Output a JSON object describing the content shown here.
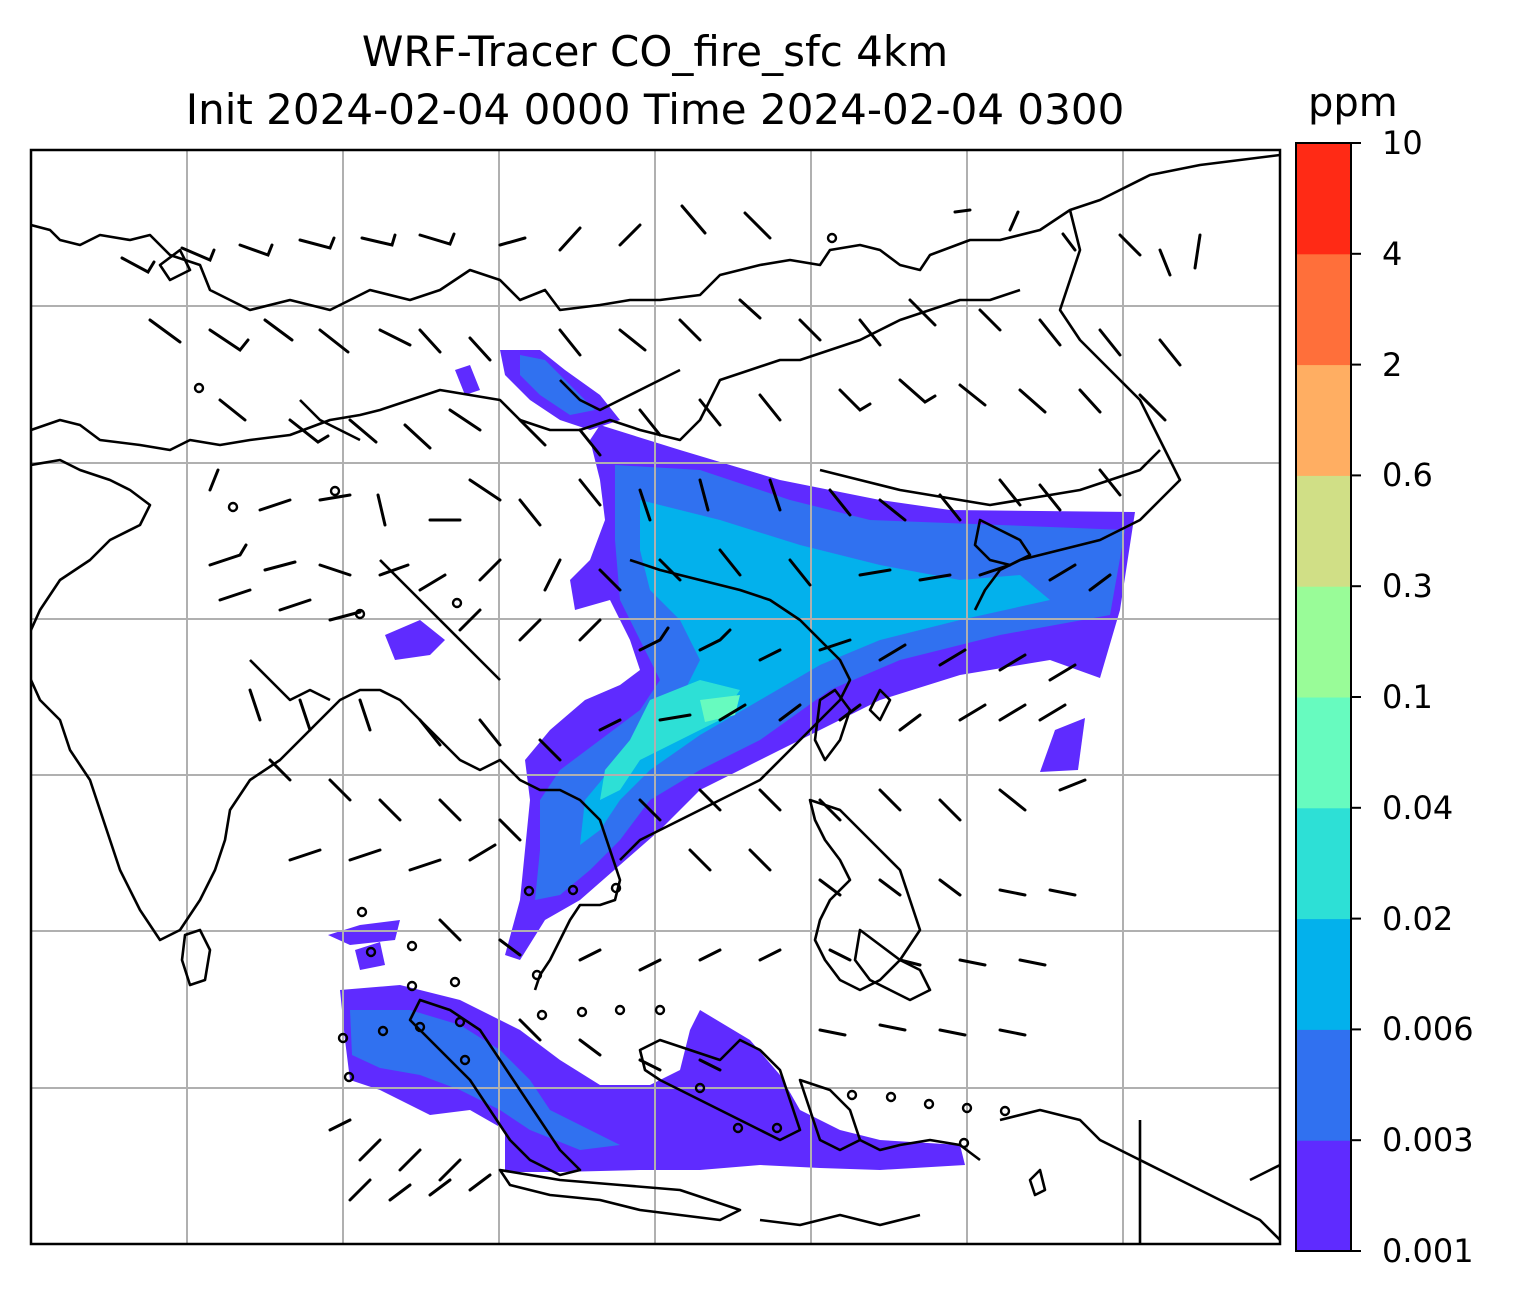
{
  "title_line1": "WRF-Tracer CO_fire_sfc 4km",
  "title_line2": "Init 2024-02-04 0000 Time 2024-02-04 0300",
  "colorbar": {
    "units": "ppm",
    "ticks": [
      "0.001",
      "0.003",
      "0.006",
      "0.02",
      "0.04",
      "0.1",
      "0.3",
      "0.6",
      "2",
      "4",
      "10"
    ],
    "colors": [
      "#5f2bff",
      "#3071f0",
      "#03b1ec",
      "#2de0d6",
      "#67fbbf",
      "#99fc98",
      "#d0df86",
      "#ffae62",
      "#ff6f3a",
      "#ff2a15"
    ]
  },
  "map": {
    "gridlines": true,
    "coastlines": true,
    "wind_barbs": true,
    "field_colors": {
      "lvl1": "#5f2bff",
      "lvl2": "#3071f0",
      "lvl3": "#03b1ec",
      "lvl4": "#2de0d6",
      "lvl5": "#67fbbf"
    }
  }
}
